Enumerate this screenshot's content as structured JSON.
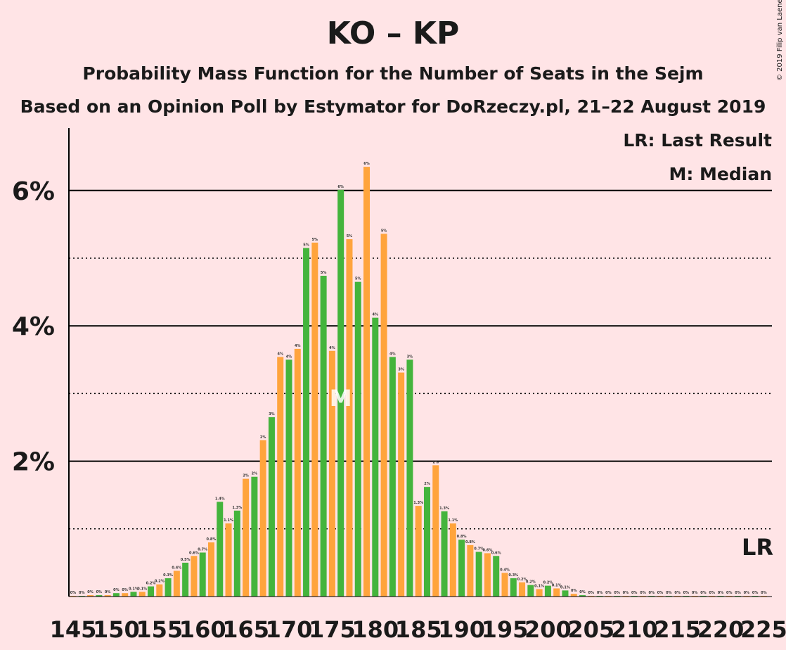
{
  "header": {
    "title": "KO – KP",
    "subtitle": "Probability Mass Function for the Number of Seats in the Sejm",
    "subtitle2": "Based on an Opinion Poll by Estymator for DoRzeczy.pl, 21–22 August 2019",
    "copyright": "© 2019 Filip van Laenen"
  },
  "legend": {
    "last_result": "LR: Last Result",
    "median": "M: Median"
  },
  "markers": {
    "median_label": "M",
    "median_seat": 176,
    "last_result_label": "LR",
    "last_result_seat": 225
  },
  "colors": {
    "background": "#ffe4e6",
    "green": "#44b43c",
    "orange": "#ffa43c",
    "axis": "#000000"
  },
  "chart_data": {
    "type": "bar",
    "title": "KO – KP",
    "ylim": [
      0,
      6.9
    ],
    "y_major_ticks": [
      2,
      4,
      6
    ],
    "y_minor_lines": [
      1,
      3,
      5
    ],
    "y_tick_labels": [
      "2%",
      "4%",
      "6%"
    ],
    "x_tick_labels": [
      "145",
      "150",
      "155",
      "160",
      "165",
      "170",
      "175",
      "180",
      "185",
      "190",
      "195",
      "200",
      "205",
      "210",
      "215",
      "220",
      "225"
    ],
    "seats": [
      145,
      146,
      147,
      148,
      149,
      150,
      151,
      152,
      153,
      154,
      155,
      156,
      157,
      158,
      159,
      160,
      161,
      162,
      163,
      164,
      165,
      166,
      167,
      168,
      169,
      170,
      171,
      172,
      173,
      174,
      175,
      176,
      177,
      178,
      179,
      180,
      181,
      182,
      183,
      184,
      185,
      186,
      187,
      188,
      189,
      190,
      191,
      192,
      193,
      194,
      195,
      196,
      197,
      198,
      199,
      200,
      201,
      202,
      203,
      204,
      205,
      206,
      207,
      208,
      209,
      210,
      211,
      212,
      213,
      214,
      215,
      216,
      217,
      218,
      219,
      220,
      221,
      222,
      223,
      224,
      225
    ],
    "values": [
      0.01,
      0.01,
      0.02,
      0.02,
      0.02,
      0.05,
      0.05,
      0.07,
      0.07,
      0.15,
      0.18,
      0.27,
      0.38,
      0.5,
      0.6,
      0.65,
      0.8,
      1.4,
      1.08,
      1.27,
      1.74,
      1.77,
      2.31,
      2.65,
      3.54,
      3.5,
      3.66,
      5.15,
      5.23,
      4.74,
      3.63,
      6.01,
      5.28,
      4.65,
      6.35,
      4.12,
      5.36,
      3.54,
      3.31,
      3.5,
      1.34,
      1.62,
      1.94,
      1.26,
      1.08,
      0.84,
      0.76,
      0.66,
      0.64,
      0.6,
      0.35,
      0.27,
      0.21,
      0.17,
      0.11,
      0.16,
      0.12,
      0.09,
      0.04,
      0.02,
      0.01,
      0.01,
      0.01,
      0.01,
      0.01,
      0.01,
      0.01,
      0.01,
      0.01,
      0.01,
      0.01,
      0.01,
      0.01,
      0.01,
      0.01,
      0.01,
      0.01,
      0.01,
      0.01,
      0.01,
      0.01
    ],
    "value_labels": [
      "0%",
      "0%",
      "0%",
      "0%",
      "0%",
      "0%",
      "0%",
      "0.1%",
      "0.1%",
      "0.2%",
      "0.2%",
      "0.3%",
      "0.4%",
      "0.5%",
      "0.6%",
      "0.7%",
      "0.8%",
      "1.4%",
      "1.1%",
      "1.3%",
      "2%",
      "2%",
      "2%",
      "3%",
      "4%",
      "4%",
      "4%",
      "5%",
      "5%",
      "5%",
      "4%",
      "6%",
      "5%",
      "5%",
      "6%",
      "4%",
      "5%",
      "4%",
      "3%",
      "3%",
      "1.3%",
      "2%",
      "2%",
      "1.3%",
      "1.1%",
      "0.8%",
      "0.8%",
      "0.7%",
      "0.6%",
      "0.6%",
      "0.4%",
      "0.3%",
      "0.2%",
      "0.2%",
      "0.1%",
      "0.2%",
      "0.1%",
      "0.1%",
      "0%",
      "0%",
      "0%",
      "0%",
      "0%",
      "0%",
      "0%",
      "0%",
      "0%",
      "0%",
      "0%",
      "0%",
      "0%",
      "0%",
      "0%",
      "0%",
      "0%",
      "0%",
      "0%",
      "0%",
      "0%",
      "0%",
      "0%"
    ]
  }
}
